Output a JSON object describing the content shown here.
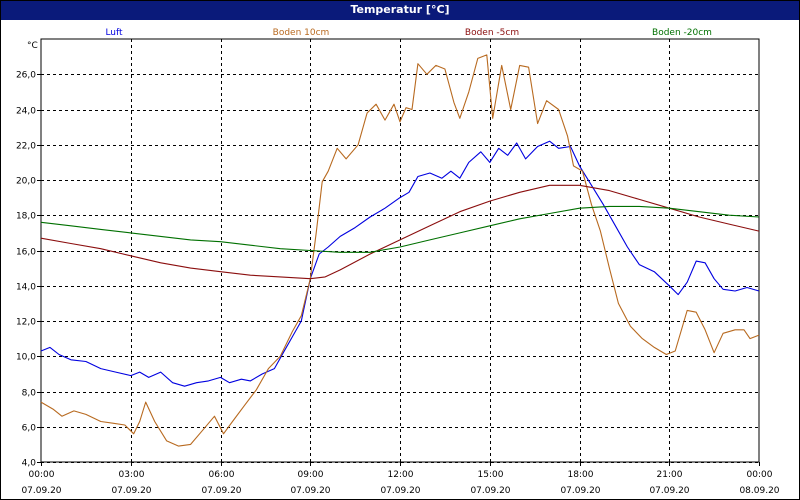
{
  "window": {
    "title": "Temperatur [°C]"
  },
  "chart_data": {
    "type": "line",
    "title": "Temperatur [°C]",
    "ylabel": "°C",
    "ylim": [
      4.0,
      28.0
    ],
    "y_ticks": [
      "4,0",
      "6,0",
      "8,0",
      "10,0",
      "12,0",
      "14,0",
      "16,0",
      "18,0",
      "20,0",
      "22,0",
      "24,0",
      "26,0"
    ],
    "x_ticks": [
      {
        "time": "00:00",
        "date": "07.09.20"
      },
      {
        "time": "03:00",
        "date": "07.09.20"
      },
      {
        "time": "06:00",
        "date": "07.09.20"
      },
      {
        "time": "09:00",
        "date": "07.09.20"
      },
      {
        "time": "12:00",
        "date": "07.09.20"
      },
      {
        "time": "15:00",
        "date": "07.09.20"
      },
      {
        "time": "18:00",
        "date": "07.09.20"
      },
      {
        "time": "21:00",
        "date": "07.09.20"
      },
      {
        "time": "00:00",
        "date": "08.09.20"
      }
    ],
    "x_unit": "hours since 07.09.20 00:00",
    "xlim": [
      0,
      24
    ],
    "grid": true,
    "legend_position": "top",
    "series": [
      {
        "name": "Luft",
        "color": "#0000e0",
        "points": [
          [
            0,
            10.3
          ],
          [
            0.3,
            10.5
          ],
          [
            0.6,
            10.1
          ],
          [
            1,
            9.8
          ],
          [
            1.5,
            9.7
          ],
          [
            2,
            9.3
          ],
          [
            2.5,
            9.1
          ],
          [
            3,
            8.9
          ],
          [
            3.3,
            9.1
          ],
          [
            3.6,
            8.8
          ],
          [
            4,
            9.1
          ],
          [
            4.4,
            8.5
          ],
          [
            4.8,
            8.3
          ],
          [
            5.2,
            8.5
          ],
          [
            5.6,
            8.6
          ],
          [
            6,
            8.8
          ],
          [
            6.3,
            8.5
          ],
          [
            6.7,
            8.7
          ],
          [
            7,
            8.6
          ],
          [
            7.4,
            9.0
          ],
          [
            7.8,
            9.3
          ],
          [
            8.1,
            10.2
          ],
          [
            8.4,
            11.1
          ],
          [
            8.7,
            12.0
          ],
          [
            9.0,
            14.4
          ],
          [
            9.3,
            15.8
          ],
          [
            9.6,
            16.2
          ],
          [
            10,
            16.8
          ],
          [
            10.5,
            17.3
          ],
          [
            11,
            17.9
          ],
          [
            11.5,
            18.4
          ],
          [
            12,
            19.0
          ],
          [
            12.3,
            19.3
          ],
          [
            12.6,
            20.2
          ],
          [
            13,
            20.4
          ],
          [
            13.4,
            20.1
          ],
          [
            13.7,
            20.5
          ],
          [
            14,
            20.1
          ],
          [
            14.3,
            21.0
          ],
          [
            14.7,
            21.6
          ],
          [
            15,
            21.0
          ],
          [
            15.3,
            21.8
          ],
          [
            15.6,
            21.4
          ],
          [
            15.9,
            22.1
          ],
          [
            16.2,
            21.2
          ],
          [
            16.6,
            21.9
          ],
          [
            17,
            22.2
          ],
          [
            17.3,
            21.8
          ],
          [
            17.7,
            21.9
          ],
          [
            18,
            20.8
          ],
          [
            18.4,
            19.7
          ],
          [
            18.8,
            18.6
          ],
          [
            19.2,
            17.4
          ],
          [
            19.6,
            16.2
          ],
          [
            20,
            15.2
          ],
          [
            20.5,
            14.8
          ],
          [
            21,
            14.0
          ],
          [
            21.3,
            13.5
          ],
          [
            21.6,
            14.2
          ],
          [
            21.9,
            15.4
          ],
          [
            22.2,
            15.3
          ],
          [
            22.5,
            14.4
          ],
          [
            22.8,
            13.8
          ],
          [
            23.2,
            13.7
          ],
          [
            23.6,
            13.9
          ],
          [
            24,
            13.7
          ]
        ]
      },
      {
        "name": "Boden 10cm",
        "color": "#b86a20",
        "points": [
          [
            0,
            7.4
          ],
          [
            0.4,
            7.0
          ],
          [
            0.7,
            6.6
          ],
          [
            1.1,
            6.9
          ],
          [
            1.5,
            6.7
          ],
          [
            2,
            6.3
          ],
          [
            2.4,
            6.2
          ],
          [
            2.8,
            6.1
          ],
          [
            3.1,
            5.6
          ],
          [
            3.3,
            6.3
          ],
          [
            3.5,
            7.4
          ],
          [
            3.8,
            6.3
          ],
          [
            4.2,
            5.2
          ],
          [
            4.6,
            4.9
          ],
          [
            5,
            5.0
          ],
          [
            5.4,
            5.8
          ],
          [
            5.8,
            6.6
          ],
          [
            6.1,
            5.6
          ],
          [
            6.4,
            6.3
          ],
          [
            6.8,
            7.2
          ],
          [
            7.2,
            8.1
          ],
          [
            7.6,
            9.3
          ],
          [
            8,
            10.0
          ],
          [
            8.4,
            11.4
          ],
          [
            8.7,
            12.3
          ],
          [
            9,
            14.4
          ],
          [
            9.2,
            17.0
          ],
          [
            9.4,
            19.9
          ],
          [
            9.6,
            20.5
          ],
          [
            9.9,
            21.8
          ],
          [
            10.2,
            21.2
          ],
          [
            10.6,
            22.0
          ],
          [
            10.9,
            23.8
          ],
          [
            11.2,
            24.3
          ],
          [
            11.5,
            23.4
          ],
          [
            11.8,
            24.3
          ],
          [
            12,
            23.3
          ],
          [
            12.2,
            24.1
          ],
          [
            12.4,
            24.0
          ],
          [
            12.6,
            26.6
          ],
          [
            12.9,
            26.0
          ],
          [
            13.2,
            26.5
          ],
          [
            13.5,
            26.3
          ],
          [
            13.8,
            24.4
          ],
          [
            14.0,
            23.5
          ],
          [
            14.3,
            25.0
          ],
          [
            14.6,
            26.9
          ],
          [
            14.9,
            27.1
          ],
          [
            15.1,
            23.5
          ],
          [
            15.4,
            26.5
          ],
          [
            15.7,
            24.0
          ],
          [
            16,
            26.5
          ],
          [
            16.3,
            26.4
          ],
          [
            16.6,
            23.2
          ],
          [
            16.9,
            24.5
          ],
          [
            17.3,
            24.0
          ],
          [
            17.6,
            22.5
          ],
          [
            17.8,
            20.8
          ],
          [
            18.1,
            20.5
          ],
          [
            18.4,
            18.6
          ],
          [
            18.7,
            17.1
          ],
          [
            19,
            15.0
          ],
          [
            19.3,
            13.0
          ],
          [
            19.7,
            11.7
          ],
          [
            20.1,
            11.0
          ],
          [
            20.5,
            10.5
          ],
          [
            20.9,
            10.1
          ],
          [
            21.2,
            10.3
          ],
          [
            21.6,
            12.6
          ],
          [
            21.9,
            12.5
          ],
          [
            22.2,
            11.5
          ],
          [
            22.5,
            10.2
          ],
          [
            22.8,
            11.3
          ],
          [
            23.2,
            11.5
          ],
          [
            23.5,
            11.5
          ],
          [
            23.7,
            11.0
          ],
          [
            24,
            11.2
          ]
        ]
      },
      {
        "name": "Boden -5cm",
        "color": "#8b0e0e",
        "points": [
          [
            0,
            16.7
          ],
          [
            1,
            16.4
          ],
          [
            2,
            16.1
          ],
          [
            3,
            15.7
          ],
          [
            4,
            15.3
          ],
          [
            5,
            15.0
          ],
          [
            6,
            14.8
          ],
          [
            7,
            14.6
          ],
          [
            8,
            14.5
          ],
          [
            9,
            14.4
          ],
          [
            9.5,
            14.5
          ],
          [
            10,
            14.9
          ],
          [
            11,
            15.8
          ],
          [
            12,
            16.6
          ],
          [
            13,
            17.4
          ],
          [
            14,
            18.2
          ],
          [
            15,
            18.8
          ],
          [
            16,
            19.3
          ],
          [
            17,
            19.7
          ],
          [
            18,
            19.7
          ],
          [
            19,
            19.4
          ],
          [
            20,
            18.9
          ],
          [
            21,
            18.4
          ],
          [
            22,
            17.9
          ],
          [
            23,
            17.5
          ],
          [
            24,
            17.1
          ]
        ]
      },
      {
        "name": "Boden -20cm",
        "color": "#007000",
        "points": [
          [
            0,
            17.6
          ],
          [
            1,
            17.4
          ],
          [
            2,
            17.2
          ],
          [
            3,
            17.0
          ],
          [
            4,
            16.8
          ],
          [
            5,
            16.6
          ],
          [
            6,
            16.5
          ],
          [
            7,
            16.3
          ],
          [
            8,
            16.1
          ],
          [
            9,
            16.0
          ],
          [
            10,
            15.9
          ],
          [
            11,
            15.9
          ],
          [
            12,
            16.2
          ],
          [
            13,
            16.6
          ],
          [
            14,
            17.0
          ],
          [
            15,
            17.4
          ],
          [
            16,
            17.8
          ],
          [
            17,
            18.1
          ],
          [
            18,
            18.4
          ],
          [
            19,
            18.5
          ],
          [
            20,
            18.5
          ],
          [
            21,
            18.4
          ],
          [
            22,
            18.2
          ],
          [
            23,
            18.0
          ],
          [
            24,
            17.9
          ]
        ]
      }
    ]
  }
}
